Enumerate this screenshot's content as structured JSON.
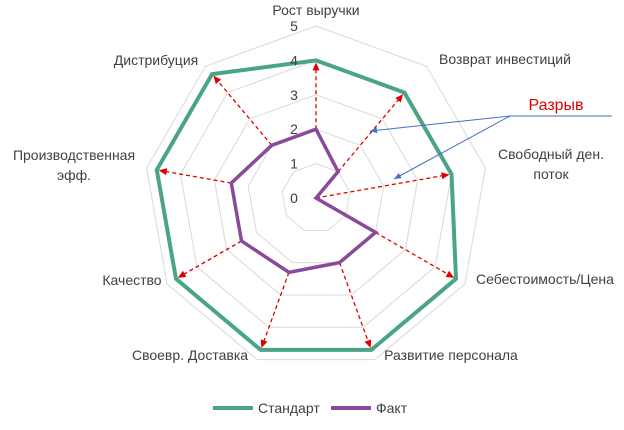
{
  "chart_data": {
    "type": "radar",
    "categories": [
      [
        "Рост выручки"
      ],
      [
        "Возврат инвестиций"
      ],
      [
        "Свободный ден.",
        "поток"
      ],
      [
        "Себестоимость/Цена"
      ],
      [
        "Развитие персонала"
      ],
      [
        "Своевр. Доставка"
      ],
      [
        "Качество"
      ],
      [
        "Производственная",
        "эфф."
      ],
      [
        "Дистрибуция"
      ]
    ],
    "series": [
      {
        "name": "Стандарт",
        "color": "#4BA486",
        "values": [
          4,
          4,
          4,
          4.7,
          4.7,
          4.7,
          4.7,
          4.7,
          4.7
        ]
      },
      {
        "name": "Факт",
        "color": "#8A4A9A",
        "values": [
          2,
          1,
          0,
          2,
          2,
          2.3,
          2.5,
          2.5,
          2
        ]
      }
    ],
    "rlim": [
      0,
      5
    ],
    "ticks": [
      "0",
      "1",
      "2",
      "3",
      "4",
      "5"
    ],
    "grid": true,
    "legend": "bottom",
    "annotation": {
      "text": "Разрыв",
      "color": "#E00000"
    },
    "gap_line_color": "#E00000"
  }
}
